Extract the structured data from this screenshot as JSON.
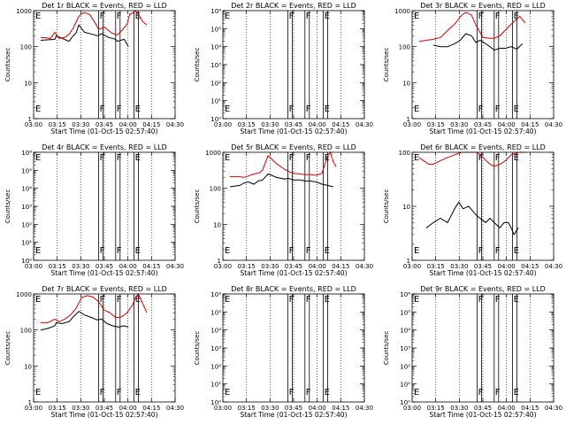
{
  "chart_data": [
    {
      "type": "line",
      "title": "Det 1r BLACK = Events, RED = LLD",
      "xlabel": "Start Time (01-Oct-15 02:57:40)",
      "ylabel": "Counts/sec",
      "y_scale": "log",
      "ylim": [
        1,
        1000
      ],
      "xlim": [
        0,
        100
      ],
      "x_ticks": [
        "03:00",
        "03:15",
        "03:30",
        "03:45",
        "04:00",
        "04:15",
        "04:30"
      ],
      "y_ticks": [
        "1",
        "10",
        "100",
        "1000"
      ],
      "markers": [
        {
          "x": 46,
          "label": "F"
        },
        {
          "x": 58,
          "label": "F"
        },
        {
          "x": 71,
          "label": "E"
        }
      ],
      "series": [
        {
          "name": "BLACK",
          "color": "#000000",
          "x": [
            5,
            15,
            16,
            25,
            27,
            30,
            32,
            36,
            38,
            45,
            48,
            53,
            58,
            59,
            64,
            67
          ],
          "y": [
            150,
            160,
            200,
            140,
            180,
            240,
            400,
            250,
            240,
            200,
            230,
            180,
            160,
            140,
            160,
            100
          ]
        },
        {
          "name": "RED",
          "color": "#d40000",
          "x": [
            5,
            12,
            15,
            18,
            22,
            25,
            28,
            32,
            35,
            38,
            40,
            44,
            46,
            50,
            55,
            59,
            62,
            66,
            68,
            70,
            72,
            74,
            77,
            80
          ],
          "y": [
            180,
            170,
            250,
            170,
            180,
            220,
            330,
            700,
            880,
            830,
            750,
            420,
            300,
            350,
            240,
            210,
            270,
            420,
            800,
            850,
            1000,
            800,
            500,
            400
          ]
        }
      ]
    },
    {
      "type": "line",
      "title": "Det 2r BLACK = Events, RED = LLD",
      "xlabel": "Start Time (01-Oct-15 02:57:40)",
      "ylabel": "Counts/sec",
      "y_scale": "log",
      "ylim": [
        1,
        1000000
      ],
      "xlim": [
        0,
        100
      ],
      "x_ticks": [
        "03:00",
        "03:15",
        "03:30",
        "03:45",
        "04:00",
        "04:15",
        "04:30"
      ],
      "y_ticks": [
        "10⁰",
        "10¹",
        "10²",
        "10³",
        "10⁴",
        "10⁵",
        "10⁶"
      ],
      "markers": [
        {
          "x": 46,
          "label": "F"
        },
        {
          "x": 58,
          "label": "F"
        },
        {
          "x": 71,
          "label": "E"
        }
      ],
      "series": []
    },
    {
      "type": "line",
      "title": "Det 3r BLACK = Events, RED = LLD",
      "xlabel": "Start Time (01-Oct-15 02:57:40)",
      "ylabel": "Counts/sec",
      "y_scale": "log",
      "ylim": [
        1,
        1000
      ],
      "xlim": [
        0,
        100
      ],
      "x_ticks": [
        "03:00",
        "03:15",
        "03:30",
        "03:45",
        "04:00",
        "04:15",
        "04:30"
      ],
      "y_ticks": [
        "1",
        "10",
        "100",
        "1000"
      ],
      "markers": [
        {
          "x": 46,
          "label": "F"
        },
        {
          "x": 58,
          "label": "F"
        },
        {
          "x": 71,
          "label": "E"
        }
      ],
      "series": [
        {
          "name": "BLACK",
          "color": "#000000",
          "x": [
            15,
            20,
            25,
            30,
            34,
            38,
            42,
            45,
            48,
            52,
            55,
            58,
            62,
            66,
            70,
            74,
            78
          ],
          "y": [
            110,
            100,
            100,
            120,
            150,
            230,
            200,
            130,
            150,
            120,
            100,
            80,
            90,
            90,
            100,
            85,
            120
          ]
        },
        {
          "name": "RED",
          "color": "#d40000",
          "x": [
            5,
            10,
            15,
            20,
            25,
            30,
            35,
            38,
            42,
            45,
            50,
            55,
            58,
            62,
            68,
            72,
            76,
            80
          ],
          "y": [
            140,
            150,
            160,
            180,
            280,
            420,
            750,
            900,
            750,
            400,
            180,
            170,
            170,
            200,
            350,
            500,
            700,
            450
          ]
        }
      ]
    },
    {
      "type": "line",
      "title": "Det 4r BLACK = Events, RED = LLD",
      "xlabel": "Start Time (01-Oct-15 02:57:40)",
      "ylabel": "Counts/sec",
      "y_scale": "log",
      "ylim": [
        1,
        1000000
      ],
      "xlim": [
        0,
        100
      ],
      "x_ticks": [
        "03:00",
        "03:15",
        "03:30",
        "03:45",
        "04:00",
        "04:15",
        "04:30"
      ],
      "y_ticks": [
        "10⁰",
        "10¹",
        "10²",
        "10³",
        "10⁴",
        "10⁵",
        "10⁶"
      ],
      "markers": [
        {
          "x": 46,
          "label": "F"
        },
        {
          "x": 58,
          "label": "F"
        },
        {
          "x": 71,
          "label": "E"
        }
      ],
      "series": []
    },
    {
      "type": "line",
      "title": "Det 5r BLACK = Events, RED = LLD",
      "xlabel": "Start Time (01-Oct-15 02:57:40)",
      "ylabel": "Counts/sec",
      "y_scale": "log",
      "ylim": [
        1,
        1000
      ],
      "xlim": [
        0,
        100
      ],
      "x_ticks": [
        "03:00",
        "03:15",
        "03:30",
        "03:45",
        "04:00",
        "04:15",
        "04:30"
      ],
      "y_ticks": [
        "1",
        "10",
        "100",
        "1000"
      ],
      "markers": [
        {
          "x": 46,
          "label": "F"
        },
        {
          "x": 58,
          "label": "F"
        },
        {
          "x": 71,
          "label": "E"
        }
      ],
      "series": [
        {
          "name": "BLACK",
          "color": "#000000",
          "x": [
            5,
            12,
            15,
            18,
            22,
            25,
            28,
            32,
            38,
            44,
            46,
            50,
            55,
            58,
            62,
            66,
            70,
            74,
            78
          ],
          "y": [
            110,
            120,
            140,
            150,
            130,
            160,
            170,
            250,
            200,
            180,
            190,
            170,
            170,
            160,
            160,
            150,
            130,
            120,
            110
          ]
        },
        {
          "name": "RED",
          "color": "#d40000",
          "x": [
            5,
            12,
            15,
            18,
            22,
            26,
            28,
            32,
            38,
            44,
            46,
            50,
            55,
            58,
            62,
            66,
            70,
            74,
            76,
            78,
            80
          ],
          "y": [
            210,
            210,
            200,
            220,
            250,
            270,
            320,
            800,
            480,
            330,
            300,
            260,
            250,
            240,
            240,
            230,
            260,
            800,
            1000,
            550,
            400
          ]
        }
      ]
    },
    {
      "type": "line",
      "title": "Det 6r BLACK = Events, RED = LLD",
      "xlabel": "Start Time (01-Oct-15 02:57:40)",
      "ylabel": "Counts/sec",
      "y_scale": "log",
      "ylim": [
        1,
        100
      ],
      "xlim": [
        0,
        100
      ],
      "x_ticks": [
        "03:00",
        "03:15",
        "03:30",
        "03:45",
        "04:00",
        "04:15",
        "04:30"
      ],
      "y_ticks": [
        "1",
        "10",
        "100"
      ],
      "markers": [
        {
          "x": 46,
          "label": "F"
        },
        {
          "x": 58,
          "label": "F"
        },
        {
          "x": 71,
          "label": "E"
        }
      ],
      "series": [
        {
          "name": "BLACK",
          "color": "#000000",
          "x": [
            10,
            15,
            20,
            25,
            28,
            30,
            33,
            36,
            40,
            45,
            48,
            52,
            55,
            58,
            62,
            65,
            68,
            70,
            72,
            75
          ],
          "y": [
            4,
            5,
            6,
            5,
            7,
            9,
            12,
            9,
            10,
            7,
            6,
            5,
            6,
            5,
            4,
            5,
            5,
            4,
            3,
            4
          ]
        },
        {
          "name": "RED",
          "color": "#d40000",
          "x": [
            5,
            8,
            12,
            15,
            20,
            25,
            30,
            35,
            38,
            42,
            46,
            50,
            55,
            58,
            62,
            66,
            70,
            75,
            80
          ],
          "y": [
            80,
            70,
            60,
            60,
            70,
            80,
            90,
            100,
            100,
            100,
            100,
            80,
            60,
            55,
            60,
            70,
            90,
            100,
            100
          ]
        }
      ]
    },
    {
      "type": "line",
      "title": "Det 7r BLACK = Events, RED = LLD",
      "xlabel": "Start Time (01-Oct-15 02:57:40)",
      "ylabel": "Counts/sec",
      "y_scale": "log",
      "ylim": [
        1,
        1000
      ],
      "xlim": [
        0,
        100
      ],
      "x_ticks": [
        "03:00",
        "03:15",
        "03:30",
        "03:45",
        "04:00",
        "04:15",
        "04:30"
      ],
      "y_ticks": [
        "1",
        "10",
        "100",
        "1000"
      ],
      "markers": [
        {
          "x": 46,
          "label": "F"
        },
        {
          "x": 58,
          "label": "F"
        },
        {
          "x": 71,
          "label": "E"
        }
      ],
      "series": [
        {
          "name": "BLACK",
          "color": "#000000",
          "x": [
            5,
            10,
            15,
            16,
            20,
            25,
            28,
            32,
            36,
            40,
            45,
            48,
            52,
            56,
            60,
            64,
            67
          ],
          "y": [
            100,
            110,
            130,
            160,
            150,
            170,
            230,
            330,
            260,
            230,
            190,
            200,
            150,
            130,
            120,
            130,
            120
          ]
        },
        {
          "name": "RED",
          "color": "#d40000",
          "x": [
            5,
            10,
            15,
            18,
            22,
            26,
            30,
            34,
            38,
            42,
            46,
            50,
            54,
            58,
            62,
            66,
            70,
            72,
            74,
            78,
            80
          ],
          "y": [
            160,
            160,
            200,
            170,
            200,
            260,
            400,
            800,
            900,
            820,
            600,
            350,
            300,
            220,
            230,
            300,
            500,
            800,
            1000,
            450,
            300
          ]
        }
      ]
    },
    {
      "type": "line",
      "title": "Det 8r BLACK = Events, RED = LLD",
      "xlabel": "Start Time (01-Oct-15 02:57:40)",
      "ylabel": "Counts/sec",
      "y_scale": "log",
      "ylim": [
        1,
        1000000
      ],
      "xlim": [
        0,
        100
      ],
      "x_ticks": [
        "03:00",
        "03:15",
        "03:30",
        "03:45",
        "04:00",
        "04:15",
        "04:30"
      ],
      "y_ticks": [
        "10⁰",
        "10¹",
        "10²",
        "10³",
        "10⁴",
        "10⁵",
        "10⁶"
      ],
      "markers": [
        {
          "x": 46,
          "label": "F"
        },
        {
          "x": 58,
          "label": "F"
        },
        {
          "x": 71,
          "label": "E"
        }
      ],
      "series": []
    },
    {
      "type": "line",
      "title": "Det 9r BLACK = Events, RED = LLD",
      "xlabel": "Start Time (01-Oct-15 02:57:40)",
      "ylabel": "Counts/sec",
      "y_scale": "log",
      "ylim": [
        1,
        1000000
      ],
      "xlim": [
        0,
        100
      ],
      "x_ticks": [
        "03:00",
        "03:15",
        "03:30",
        "03:45",
        "04:00",
        "04:15",
        "04:30"
      ],
      "y_ticks": [
        "10⁰",
        "10¹",
        "10²",
        "10³",
        "10⁴",
        "10⁵",
        "10⁶"
      ],
      "markers": [
        {
          "x": 46,
          "label": "F"
        },
        {
          "x": 58,
          "label": "F"
        },
        {
          "x": 71,
          "label": "E"
        }
      ],
      "series": []
    }
  ]
}
